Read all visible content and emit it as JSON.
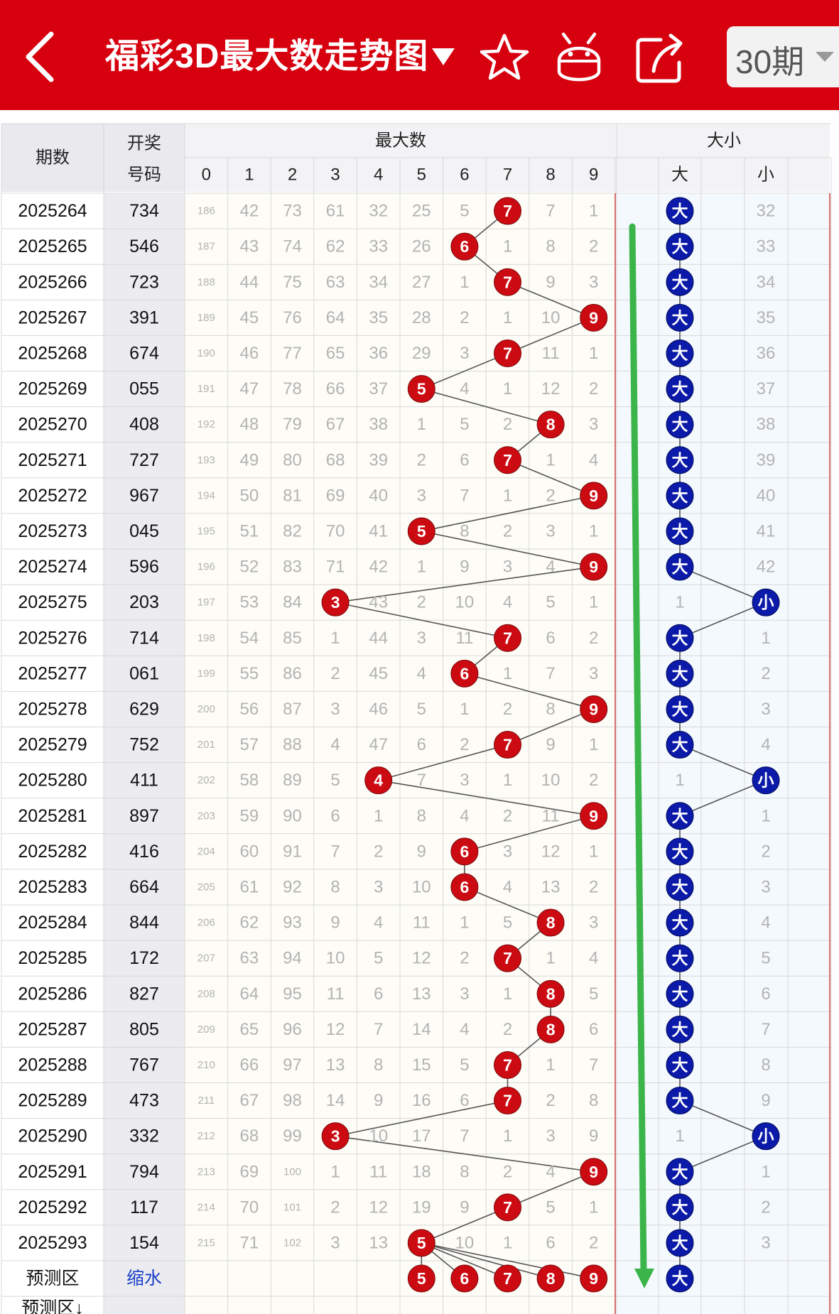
{
  "header": {
    "title": "福彩3D最大数走势图",
    "period_select": "30期",
    "icons": [
      "back-arrow-icon",
      "dropdown-triangle-icon",
      "star-icon",
      "robot-icon",
      "share-icon",
      "chevron-down-icon"
    ]
  },
  "table": {
    "col_issue": "期数",
    "col_draw_line1": "开奖",
    "col_draw_line2": "号码",
    "group_max": "最大数",
    "digits": [
      "0",
      "1",
      "2",
      "3",
      "4",
      "5",
      "6",
      "7",
      "8",
      "9"
    ],
    "group_size": "大小",
    "size_big": "大",
    "size_small": "小",
    "rows": [
      {
        "issue": "2025264",
        "draw": "734",
        "max": 7,
        "miss": [
          "186",
          "42",
          "73",
          "61",
          "32",
          "25",
          "5",
          "",
          "7",
          "1"
        ],
        "size": "大",
        "big_miss": "",
        "small_miss": "32"
      },
      {
        "issue": "2025265",
        "draw": "546",
        "max": 6,
        "miss": [
          "187",
          "43",
          "74",
          "62",
          "33",
          "26",
          "",
          "1",
          "8",
          "2"
        ],
        "size": "大",
        "big_miss": "",
        "small_miss": "33"
      },
      {
        "issue": "2025266",
        "draw": "723",
        "max": 7,
        "miss": [
          "188",
          "44",
          "75",
          "63",
          "34",
          "27",
          "1",
          "",
          "9",
          "3"
        ],
        "size": "大",
        "big_miss": "",
        "small_miss": "34"
      },
      {
        "issue": "2025267",
        "draw": "391",
        "max": 9,
        "miss": [
          "189",
          "45",
          "76",
          "64",
          "35",
          "28",
          "2",
          "1",
          "10",
          ""
        ],
        "size": "大",
        "big_miss": "",
        "small_miss": "35"
      },
      {
        "issue": "2025268",
        "draw": "674",
        "max": 7,
        "miss": [
          "190",
          "46",
          "77",
          "65",
          "36",
          "29",
          "3",
          "",
          "11",
          "1"
        ],
        "size": "大",
        "big_miss": "",
        "small_miss": "36"
      },
      {
        "issue": "2025269",
        "draw": "055",
        "max": 5,
        "miss": [
          "191",
          "47",
          "78",
          "66",
          "37",
          "",
          "4",
          "1",
          "12",
          "2"
        ],
        "size": "大",
        "big_miss": "",
        "small_miss": "37"
      },
      {
        "issue": "2025270",
        "draw": "408",
        "max": 8,
        "miss": [
          "192",
          "48",
          "79",
          "67",
          "38",
          "1",
          "5",
          "2",
          "",
          "3"
        ],
        "size": "大",
        "big_miss": "",
        "small_miss": "38"
      },
      {
        "issue": "2025271",
        "draw": "727",
        "max": 7,
        "miss": [
          "193",
          "49",
          "80",
          "68",
          "39",
          "2",
          "6",
          "",
          "1",
          "4"
        ],
        "size": "大",
        "big_miss": "",
        "small_miss": "39"
      },
      {
        "issue": "2025272",
        "draw": "967",
        "max": 9,
        "miss": [
          "194",
          "50",
          "81",
          "69",
          "40",
          "3",
          "7",
          "1",
          "2",
          ""
        ],
        "size": "大",
        "big_miss": "",
        "small_miss": "40"
      },
      {
        "issue": "2025273",
        "draw": "045",
        "max": 5,
        "miss": [
          "195",
          "51",
          "82",
          "70",
          "41",
          "",
          "8",
          "2",
          "3",
          "1"
        ],
        "size": "大",
        "big_miss": "",
        "small_miss": "41"
      },
      {
        "issue": "2025274",
        "draw": "596",
        "max": 9,
        "miss": [
          "196",
          "52",
          "83",
          "71",
          "42",
          "1",
          "9",
          "3",
          "4",
          ""
        ],
        "size": "大",
        "big_miss": "",
        "small_miss": "42"
      },
      {
        "issue": "2025275",
        "draw": "203",
        "max": 3,
        "miss": [
          "197",
          "53",
          "84",
          "",
          "43",
          "2",
          "10",
          "4",
          "5",
          "1"
        ],
        "size": "小",
        "big_miss": "1",
        "small_miss": ""
      },
      {
        "issue": "2025276",
        "draw": "714",
        "max": 7,
        "miss": [
          "198",
          "54",
          "85",
          "1",
          "44",
          "3",
          "11",
          "",
          "6",
          "2"
        ],
        "size": "大",
        "big_miss": "",
        "small_miss": "1"
      },
      {
        "issue": "2025277",
        "draw": "061",
        "max": 6,
        "miss": [
          "199",
          "55",
          "86",
          "2",
          "45",
          "4",
          "",
          "1",
          "7",
          "3"
        ],
        "size": "大",
        "big_miss": "",
        "small_miss": "2"
      },
      {
        "issue": "2025278",
        "draw": "629",
        "max": 9,
        "miss": [
          "200",
          "56",
          "87",
          "3",
          "46",
          "5",
          "1",
          "2",
          "8",
          ""
        ],
        "size": "大",
        "big_miss": "",
        "small_miss": "3"
      },
      {
        "issue": "2025279",
        "draw": "752",
        "max": 7,
        "miss": [
          "201",
          "57",
          "88",
          "4",
          "47",
          "6",
          "2",
          "",
          "9",
          "1"
        ],
        "size": "大",
        "big_miss": "",
        "small_miss": "4"
      },
      {
        "issue": "2025280",
        "draw": "411",
        "max": 4,
        "miss": [
          "202",
          "58",
          "89",
          "5",
          "",
          "7",
          "3",
          "1",
          "10",
          "2"
        ],
        "size": "小",
        "big_miss": "1",
        "small_miss": ""
      },
      {
        "issue": "2025281",
        "draw": "897",
        "max": 9,
        "miss": [
          "203",
          "59",
          "90",
          "6",
          "1",
          "8",
          "4",
          "2",
          "11",
          ""
        ],
        "size": "大",
        "big_miss": "",
        "small_miss": "1"
      },
      {
        "issue": "2025282",
        "draw": "416",
        "max": 6,
        "miss": [
          "204",
          "60",
          "91",
          "7",
          "2",
          "9",
          "",
          "3",
          "12",
          "1"
        ],
        "size": "大",
        "big_miss": "",
        "small_miss": "2"
      },
      {
        "issue": "2025283",
        "draw": "664",
        "max": 6,
        "miss": [
          "205",
          "61",
          "92",
          "8",
          "3",
          "10",
          "",
          "4",
          "13",
          "2"
        ],
        "size": "大",
        "big_miss": "",
        "small_miss": "3"
      },
      {
        "issue": "2025284",
        "draw": "844",
        "max": 8,
        "miss": [
          "206",
          "62",
          "93",
          "9",
          "4",
          "11",
          "1",
          "5",
          "",
          "3"
        ],
        "size": "大",
        "big_miss": "",
        "small_miss": "4"
      },
      {
        "issue": "2025285",
        "draw": "172",
        "max": 7,
        "miss": [
          "207",
          "63",
          "94",
          "10",
          "5",
          "12",
          "2",
          "",
          "1",
          "4"
        ],
        "size": "大",
        "big_miss": "",
        "small_miss": "5"
      },
      {
        "issue": "2025286",
        "draw": "827",
        "max": 8,
        "miss": [
          "208",
          "64",
          "95",
          "11",
          "6",
          "13",
          "3",
          "1",
          "",
          "5"
        ],
        "size": "大",
        "big_miss": "",
        "small_miss": "6"
      },
      {
        "issue": "2025287",
        "draw": "805",
        "max": 8,
        "miss": [
          "209",
          "65",
          "96",
          "12",
          "7",
          "14",
          "4",
          "2",
          "",
          "6"
        ],
        "size": "大",
        "big_miss": "",
        "small_miss": "7"
      },
      {
        "issue": "2025288",
        "draw": "767",
        "max": 7,
        "miss": [
          "210",
          "66",
          "97",
          "13",
          "8",
          "15",
          "5",
          "",
          "1",
          "7"
        ],
        "size": "大",
        "big_miss": "",
        "small_miss": "8"
      },
      {
        "issue": "2025289",
        "draw": "473",
        "max": 7,
        "miss": [
          "211",
          "67",
          "98",
          "14",
          "9",
          "16",
          "6",
          "",
          "2",
          "8"
        ],
        "size": "大",
        "big_miss": "",
        "small_miss": "9"
      },
      {
        "issue": "2025290",
        "draw": "332",
        "max": 3,
        "miss": [
          "212",
          "68",
          "99",
          "",
          "10",
          "17",
          "7",
          "1",
          "3",
          "9"
        ],
        "size": "小",
        "big_miss": "1",
        "small_miss": ""
      },
      {
        "issue": "2025291",
        "draw": "794",
        "max": 9,
        "miss": [
          "213",
          "69",
          "100",
          "1",
          "11",
          "18",
          "8",
          "2",
          "4",
          ""
        ],
        "size": "大",
        "big_miss": "",
        "small_miss": "1"
      },
      {
        "issue": "2025292",
        "draw": "117",
        "max": 7,
        "miss": [
          "214",
          "70",
          "101",
          "2",
          "12",
          "19",
          "9",
          "",
          "5",
          "1"
        ],
        "size": "大",
        "big_miss": "",
        "small_miss": "2"
      },
      {
        "issue": "2025293",
        "draw": "154",
        "max": 5,
        "miss": [
          "215",
          "71",
          "102",
          "3",
          "13",
          "",
          "10",
          "1",
          "6",
          "2"
        ],
        "size": "大",
        "big_miss": "",
        "small_miss": "3"
      }
    ],
    "predict_label": "预测区",
    "predict_note": "缩水",
    "predict_digits": [
      5,
      6,
      7,
      8,
      9
    ],
    "predict_size": "大",
    "predict2_label": "预测区↓"
  },
  "colors": {
    "brand_red": "#d6000f",
    "ball_red": "#cc0a12",
    "ball_blue": "#0b1aa8",
    "trend_arrow": "#3bb54a",
    "miss_text": "#b3b3b3"
  }
}
